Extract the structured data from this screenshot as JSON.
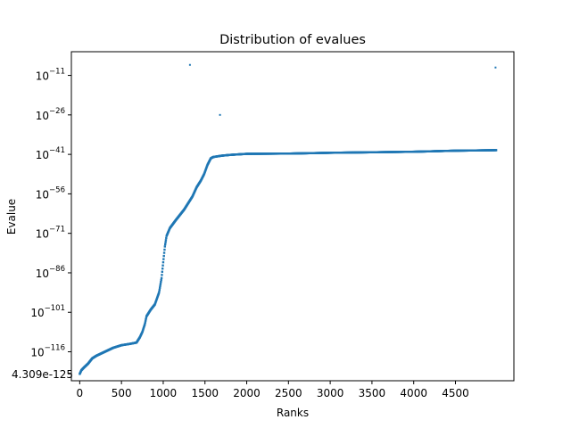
{
  "chart_data": {
    "type": "scatter",
    "title": "Distribution of evalues",
    "xlabel": "Ranks",
    "ylabel": "Evalue",
    "y_scale": "log",
    "xlim": [
      -100,
      5200
    ],
    "ylim_exponent": [
      -127,
      -2
    ],
    "x_ticks": [
      0,
      500,
      1000,
      1500,
      2000,
      2500,
      3000,
      3500,
      4000,
      4500
    ],
    "x_tick_labels": [
      "0",
      "500",
      "1000",
      "1500",
      "2000",
      "2500",
      "3000",
      "3500",
      "4000",
      "4500"
    ],
    "y_tick_exponents": [
      -116,
      -101,
      -86,
      -71,
      -56,
      -41,
      -26,
      -11
    ],
    "y_tick_mantissa": "10",
    "y_tick_powers": [
      "−116",
      "−101",
      "−86",
      "−71",
      "−56",
      "−41",
      "−26",
      "−11"
    ],
    "min_annotation": {
      "text": "4.309e-125",
      "value_exponent": -124.37,
      "color": "#ff0000"
    },
    "grid": false,
    "marker_color": "#1f77b4",
    "series_curve": {
      "name": "",
      "rank_exponent_points": [
        [
          0,
          -124.4
        ],
        [
          20,
          -123.0
        ],
        [
          50,
          -122.0
        ],
        [
          100,
          -120.5
        ],
        [
          150,
          -118.5
        ],
        [
          200,
          -117.5
        ],
        [
          300,
          -116.0
        ],
        [
          400,
          -114.5
        ],
        [
          500,
          -113.5
        ],
        [
          600,
          -113.0
        ],
        [
          680,
          -112.5
        ],
        [
          720,
          -110.5
        ],
        [
          750,
          -108.5
        ],
        [
          780,
          -105.5
        ],
        [
          800,
          -102.5
        ],
        [
          850,
          -100.0
        ],
        [
          900,
          -98.0
        ],
        [
          950,
          -93.5
        ],
        [
          980,
          -88.0
        ],
        [
          1000,
          -82.0
        ],
        [
          1020,
          -76.0
        ],
        [
          1040,
          -72.0
        ],
        [
          1080,
          -69.0
        ],
        [
          1150,
          -66.0
        ],
        [
          1250,
          -62.0
        ],
        [
          1350,
          -57.0
        ],
        [
          1400,
          -53.5
        ],
        [
          1450,
          -51.0
        ],
        [
          1490,
          -48.5
        ],
        [
          1530,
          -45.0
        ],
        [
          1570,
          -42.5
        ],
        [
          1600,
          -42.0
        ],
        [
          1700,
          -41.5
        ],
        [
          1800,
          -41.2
        ],
        [
          2000,
          -40.8
        ],
        [
          2500,
          -40.7
        ],
        [
          3000,
          -40.4
        ],
        [
          3500,
          -40.2
        ],
        [
          4000,
          -40.0
        ],
        [
          4500,
          -39.6
        ],
        [
          4990,
          -39.4
        ]
      ]
    },
    "outliers": [
      {
        "rank": 1320,
        "exponent": -7
      },
      {
        "rank": 1680,
        "exponent": -26
      },
      {
        "rank": 4980,
        "exponent": -8
      }
    ]
  }
}
